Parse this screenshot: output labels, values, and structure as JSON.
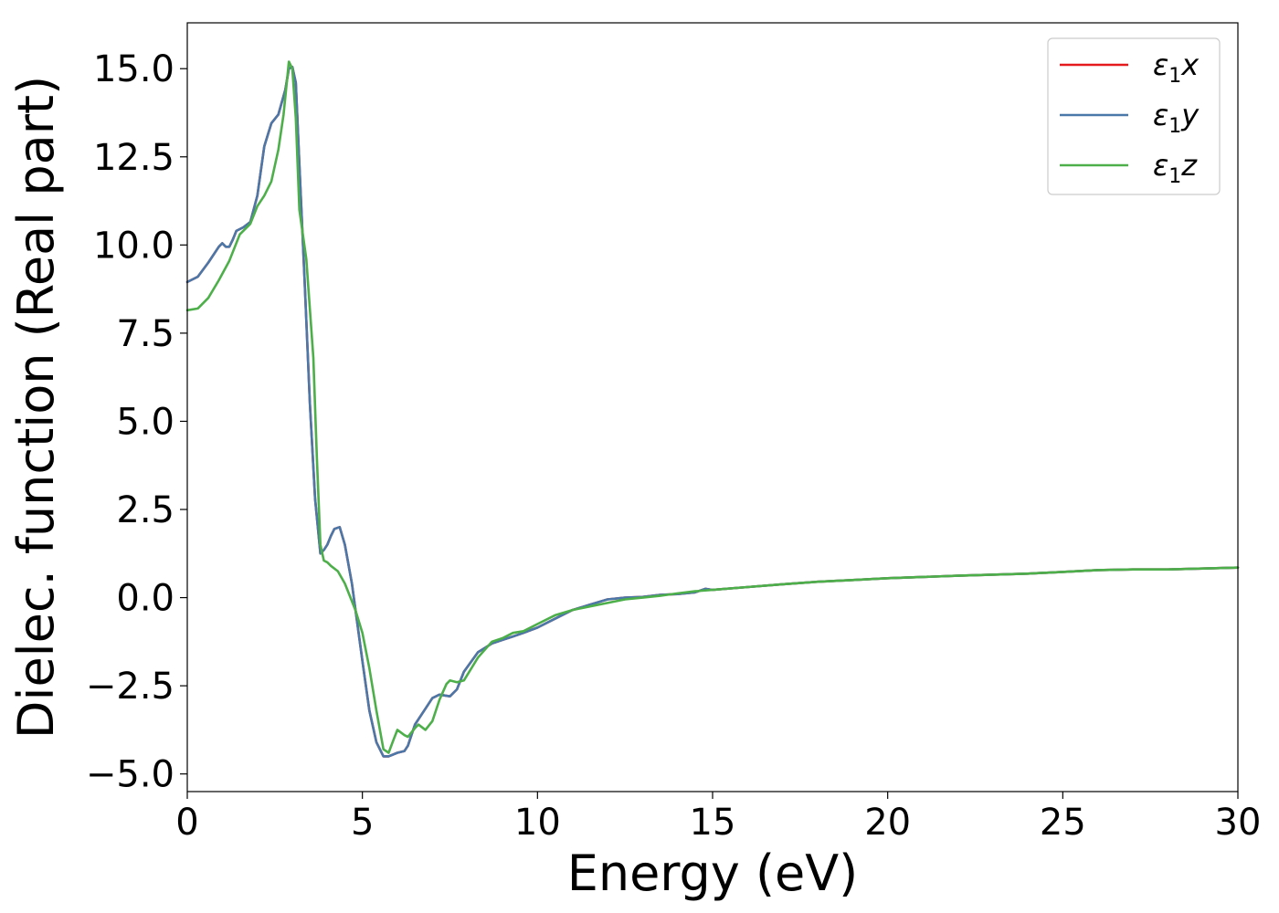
{
  "chart_data": {
    "type": "line",
    "title": "",
    "xlabel": "Energy (eV)",
    "ylabel": "Dielec. function (Real part)",
    "xlim": [
      0,
      30
    ],
    "ylim": [
      -5.5,
      16.3
    ],
    "xticks": [
      0,
      5,
      10,
      15,
      20,
      25,
      30
    ],
    "xtick_labels": [
      "0",
      "5",
      "10",
      "15",
      "20",
      "25",
      "30"
    ],
    "yticks": [
      -5.0,
      -2.5,
      0.0,
      2.5,
      5.0,
      7.5,
      10.0,
      12.5,
      15.0
    ],
    "ytick_labels": [
      "−5.0",
      "−2.5",
      "0.0",
      "2.5",
      "5.0",
      "7.5",
      "10.0",
      "12.5",
      "15.0"
    ],
    "grid": false,
    "legend_position": "top-right",
    "series": [
      {
        "name": "ε₁x",
        "legend_base": "ε",
        "legend_sub": "1",
        "legend_var": "x",
        "color": "#e41a1c",
        "x": [
          0,
          0.3,
          0.6,
          0.9,
          1.0,
          1.1,
          1.2,
          1.3,
          1.4,
          1.6,
          1.8,
          2.0,
          2.1,
          2.2,
          2.4,
          2.6,
          2.8,
          2.9,
          3.0,
          3.1,
          3.2,
          3.35,
          3.5,
          3.65,
          3.8,
          3.9,
          4.0,
          4.1,
          4.2,
          4.35,
          4.5,
          4.7,
          5.0,
          5.2,
          5.4,
          5.6,
          5.75,
          6.0,
          6.2,
          6.3,
          6.5,
          6.8,
          7.0,
          7.2,
          7.5,
          7.7,
          7.9,
          8.3,
          8.7,
          9.0,
          9.3,
          9.6,
          10.0,
          10.5,
          11.0,
          11.5,
          12.0,
          12.5,
          13.0,
          13.5,
          14.0,
          14.5,
          14.8,
          15.0,
          16.0,
          17.0,
          18.0,
          19.0,
          20.0,
          22.0,
          24.0,
          25.0,
          26.0,
          27.0,
          28.0,
          30.0
        ],
        "y": [
          8.95,
          9.1,
          9.5,
          9.95,
          10.05,
          9.95,
          9.95,
          10.15,
          10.4,
          10.5,
          10.65,
          11.4,
          12.1,
          12.8,
          13.45,
          13.7,
          14.4,
          15.0,
          15.05,
          14.6,
          12.3,
          9.0,
          5.5,
          2.8,
          1.25,
          1.35,
          1.5,
          1.75,
          1.95,
          2.0,
          1.5,
          0.4,
          -1.8,
          -3.2,
          -4.1,
          -4.5,
          -4.5,
          -4.4,
          -4.35,
          -4.2,
          -3.6,
          -3.15,
          -2.85,
          -2.75,
          -2.8,
          -2.6,
          -2.1,
          -1.55,
          -1.3,
          -1.2,
          -1.1,
          -1.0,
          -0.85,
          -0.6,
          -0.35,
          -0.2,
          -0.05,
          0.0,
          0.02,
          0.08,
          0.1,
          0.15,
          0.25,
          0.22,
          0.3,
          0.38,
          0.45,
          0.5,
          0.55,
          0.62,
          0.68,
          0.73,
          0.78,
          0.8,
          0.8,
          0.85
        ]
      },
      {
        "name": "ε₁y",
        "legend_base": "ε",
        "legend_sub": "1",
        "legend_var": "y",
        "color": "#4a78a8",
        "x": [
          0,
          0.3,
          0.6,
          0.9,
          1.0,
          1.1,
          1.2,
          1.3,
          1.4,
          1.6,
          1.8,
          2.0,
          2.1,
          2.2,
          2.4,
          2.6,
          2.8,
          2.9,
          3.0,
          3.1,
          3.2,
          3.35,
          3.5,
          3.65,
          3.8,
          3.9,
          4.0,
          4.1,
          4.2,
          4.35,
          4.5,
          4.7,
          5.0,
          5.2,
          5.4,
          5.6,
          5.75,
          6.0,
          6.2,
          6.3,
          6.5,
          6.8,
          7.0,
          7.2,
          7.5,
          7.7,
          7.9,
          8.3,
          8.7,
          9.0,
          9.3,
          9.6,
          10.0,
          10.5,
          11.0,
          11.5,
          12.0,
          12.5,
          13.0,
          13.5,
          14.0,
          14.5,
          14.8,
          15.0,
          16.0,
          17.0,
          18.0,
          19.0,
          20.0,
          22.0,
          24.0,
          25.0,
          26.0,
          27.0,
          28.0,
          30.0
        ],
        "y": [
          8.95,
          9.1,
          9.5,
          9.95,
          10.05,
          9.95,
          9.95,
          10.15,
          10.4,
          10.5,
          10.65,
          11.4,
          12.1,
          12.8,
          13.45,
          13.7,
          14.4,
          15.0,
          15.05,
          14.6,
          12.3,
          9.0,
          5.5,
          2.8,
          1.25,
          1.35,
          1.5,
          1.75,
          1.95,
          2.0,
          1.5,
          0.4,
          -1.8,
          -3.2,
          -4.1,
          -4.5,
          -4.5,
          -4.4,
          -4.35,
          -4.2,
          -3.6,
          -3.15,
          -2.85,
          -2.75,
          -2.8,
          -2.6,
          -2.1,
          -1.55,
          -1.3,
          -1.2,
          -1.1,
          -1.0,
          -0.85,
          -0.6,
          -0.35,
          -0.2,
          -0.05,
          0.0,
          0.02,
          0.08,
          0.1,
          0.15,
          0.25,
          0.22,
          0.3,
          0.38,
          0.45,
          0.5,
          0.55,
          0.62,
          0.68,
          0.73,
          0.78,
          0.8,
          0.8,
          0.85
        ]
      },
      {
        "name": "ε₁z",
        "legend_base": "ε",
        "legend_sub": "1",
        "legend_var": "z",
        "color": "#4daf4a",
        "x": [
          0,
          0.3,
          0.6,
          0.9,
          1.2,
          1.5,
          1.8,
          2.0,
          2.2,
          2.4,
          2.6,
          2.75,
          2.9,
          3.0,
          3.1,
          3.2,
          3.4,
          3.6,
          3.7,
          3.8,
          3.9,
          4.0,
          4.1,
          4.3,
          4.5,
          4.8,
          5.0,
          5.2,
          5.4,
          5.6,
          5.75,
          5.9,
          6.0,
          6.2,
          6.3,
          6.5,
          6.6,
          6.8,
          7.0,
          7.2,
          7.4,
          7.5,
          7.7,
          7.9,
          8.3,
          8.7,
          9.0,
          9.3,
          9.6,
          10.0,
          10.5,
          11.0,
          11.5,
          12.0,
          12.5,
          13.0,
          13.5,
          14.0,
          14.5,
          15.0,
          16.0,
          17.0,
          18.0,
          19.0,
          20.0,
          22.0,
          24.0,
          25.0,
          26.0,
          27.0,
          28.0,
          30.0
        ],
        "y": [
          8.15,
          8.2,
          8.5,
          9.0,
          9.55,
          10.3,
          10.6,
          11.1,
          11.4,
          11.8,
          12.7,
          13.7,
          15.2,
          15.0,
          13.6,
          11.0,
          9.6,
          6.8,
          4.0,
          1.5,
          1.05,
          1.0,
          0.9,
          0.75,
          0.4,
          -0.35,
          -1.0,
          -2.0,
          -3.2,
          -4.3,
          -4.4,
          -4.0,
          -3.75,
          -3.9,
          -3.95,
          -3.7,
          -3.6,
          -3.75,
          -3.5,
          -2.9,
          -2.45,
          -2.35,
          -2.4,
          -2.35,
          -1.7,
          -1.25,
          -1.15,
          -1.0,
          -0.95,
          -0.75,
          -0.5,
          -0.35,
          -0.25,
          -0.15,
          -0.05,
          0.0,
          0.05,
          0.12,
          0.18,
          0.22,
          0.3,
          0.38,
          0.45,
          0.5,
          0.55,
          0.62,
          0.68,
          0.73,
          0.78,
          0.8,
          0.8,
          0.85
        ]
      }
    ]
  }
}
